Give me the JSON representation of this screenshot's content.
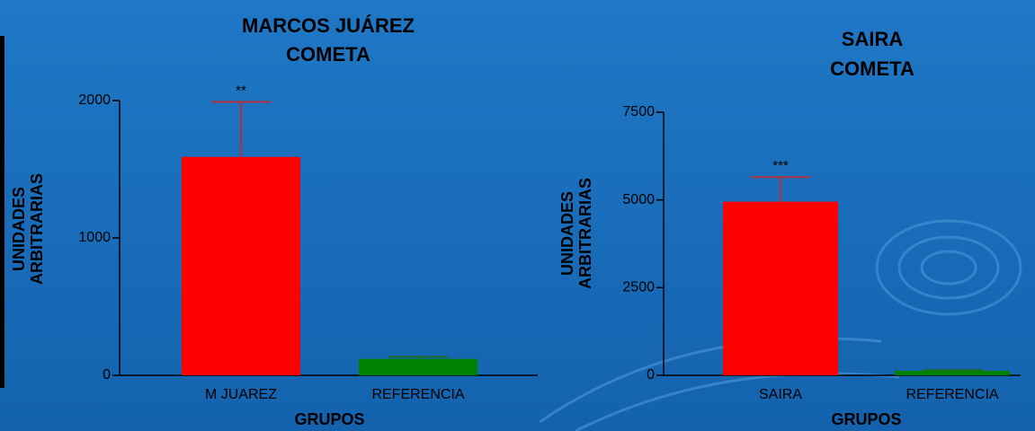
{
  "chart_data": [
    {
      "type": "bar",
      "title": "MARCOS JUÁREZ",
      "subtitle": "COMETA",
      "ylabel": [
        "UNIDADES",
        "ARBITRARIAS"
      ],
      "xlabel": "GRUPOS",
      "categories": [
        "M JUAREZ",
        "REFERENCIA"
      ],
      "values": [
        1590,
        120
      ],
      "errors": [
        400,
        15
      ],
      "colors": [
        "#ff0000",
        "#008000"
      ],
      "annotations": [
        "**"
      ],
      "ylim": [
        0,
        2000
      ],
      "yticks": [
        0,
        1000,
        2000
      ]
    },
    {
      "type": "bar",
      "title": "SAIRA",
      "subtitle": "COMETA",
      "ylabel": [
        "UNIDADES",
        "ARBITRARIAS"
      ],
      "xlabel": "GRUPOS",
      "categories": [
        "SAIRA",
        "REFERENCIA"
      ],
      "values": [
        4950,
        130
      ],
      "errors": [
        700,
        20
      ],
      "colors": [
        "#ff0000",
        "#008000"
      ],
      "annotations": [
        "***"
      ],
      "ylim": [
        0,
        7500
      ],
      "yticks": [
        0,
        2500,
        5000,
        7500
      ]
    }
  ]
}
